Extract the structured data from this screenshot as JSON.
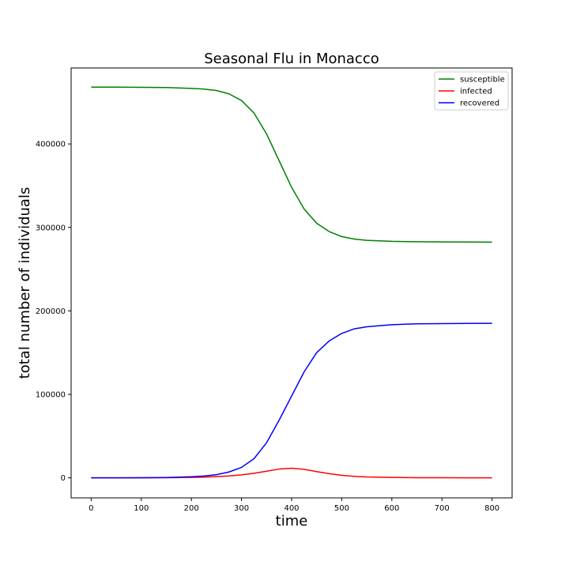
{
  "chart_data": {
    "type": "line",
    "title": "Seasonal Flu in Monacco",
    "xlabel": "time",
    "ylabel": "total number of individuals",
    "xlim": [
      -40,
      840
    ],
    "ylim": [
      -24000,
      491000
    ],
    "xticks": [
      0,
      100,
      200,
      300,
      400,
      500,
      600,
      700,
      800
    ],
    "yticks": [
      0,
      100000,
      200000,
      300000,
      400000
    ],
    "grid": false,
    "legend_position": "top-right",
    "x": [
      0,
      50,
      100,
      150,
      200,
      225,
      250,
      275,
      300,
      325,
      350,
      375,
      400,
      425,
      450,
      475,
      500,
      525,
      550,
      600,
      650,
      700,
      750,
      800
    ],
    "series": [
      {
        "name": "susceptible",
        "color": "#008000",
        "values": [
          468000,
          468000,
          467800,
          467600,
          466500,
          465700,
          464000,
          460000,
          452000,
          437000,
          412000,
          380000,
          348000,
          322000,
          305000,
          295000,
          289000,
          286000,
          284500,
          283300,
          282800,
          282600,
          282500,
          282400
        ]
      },
      {
        "name": "infected",
        "color": "#ff0000",
        "values": [
          0,
          0,
          50,
          150,
          450,
          800,
          1400,
          2300,
          3600,
          5500,
          8000,
          10500,
          11500,
          10200,
          7500,
          5000,
          3000,
          1800,
          1100,
          500,
          200,
          100,
          50,
          30
        ]
      },
      {
        "name": "recovered",
        "color": "#0000ff",
        "values": [
          0,
          0,
          100,
          400,
          1300,
          2200,
          3800,
          7000,
          12500,
          23000,
          42000,
          69000,
          98000,
          127000,
          150000,
          164000,
          173000,
          178500,
          181000,
          183500,
          184500,
          184800,
          185000,
          185100
        ]
      }
    ]
  }
}
